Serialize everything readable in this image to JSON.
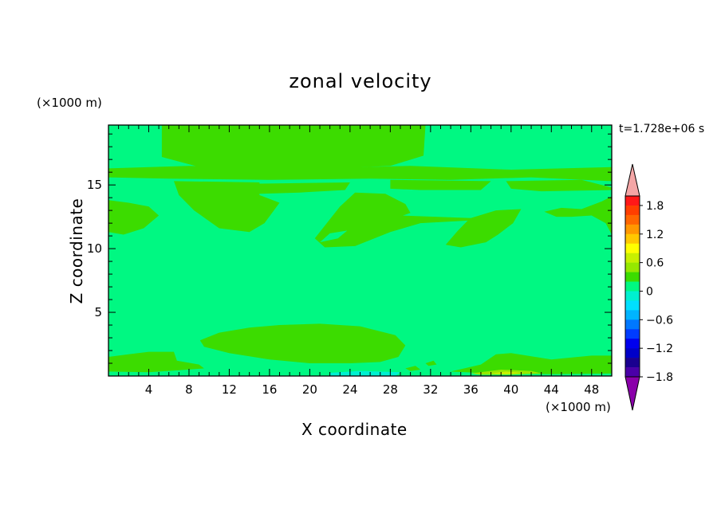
{
  "chart_data": {
    "type": "heatmap",
    "title": "zonal velocity",
    "xlabel": "X coordinate",
    "ylabel": "Z coordinate",
    "x_unit": "(×1000 m)",
    "z_unit": "(×1000 m)",
    "time_label": "t=1.728e+06 s",
    "xlim": [
      0,
      50
    ],
    "ylim": [
      0,
      19.7
    ],
    "x_ticks": [
      "4",
      "8",
      "12",
      "16",
      "20",
      "24",
      "28",
      "32",
      "36",
      "40",
      "44",
      "48"
    ],
    "y_ticks": [
      "5",
      "10",
      "15"
    ],
    "background_level_color": "#00f882",
    "colorbar": {
      "tick_labels": [
        "1.8",
        "1.2",
        "0.6",
        "0",
        "−0.6",
        "−1.2",
        "−1.8"
      ],
      "bin_colors": [
        "#ff1818",
        "#ff3e00",
        "#ff6600",
        "#ff9800",
        "#ffc800",
        "#ffff00",
        "#c8f000",
        "#96e800",
        "#3cdc00",
        "#00f882",
        "#00f0d0",
        "#00e0ff",
        "#00b4ff",
        "#0078ff",
        "#003cff",
        "#0000ee",
        "#0000c8",
        "#1a0090",
        "#4a00a8"
      ],
      "over_color": "#f4a6a6",
      "under_color": "#8a00aa"
    },
    "regions": [
      {
        "level": "0 to 0.2",
        "color": "#3cdc00",
        "polygon": [
          [
            5.3,
            19.7
          ],
          [
            31.5,
            19.7
          ],
          [
            31.3,
            17.3
          ],
          [
            28,
            16.5
          ],
          [
            20,
            16.2
          ],
          [
            10,
            16.2
          ],
          [
            5.3,
            17.2
          ]
        ]
      },
      {
        "level": "0 to 0.2",
        "color": "#3cdc00",
        "polygon": [
          [
            0,
            16.3
          ],
          [
            8,
            16.5
          ],
          [
            20,
            16.3
          ],
          [
            30,
            16.5
          ],
          [
            40,
            16.2
          ],
          [
            50,
            16.4
          ],
          [
            50,
            15.3
          ],
          [
            42,
            15.6
          ],
          [
            34,
            15.4
          ],
          [
            26,
            15.5
          ],
          [
            16,
            15.4
          ],
          [
            6,
            15.5
          ],
          [
            0,
            15.6
          ]
        ]
      },
      {
        "level": "0 to 0.2",
        "color": "#3cdc00",
        "polygon": [
          [
            0,
            13.8
          ],
          [
            2,
            13.6
          ],
          [
            4,
            13.3
          ],
          [
            5,
            12.6
          ],
          [
            3.5,
            11.6
          ],
          [
            1.5,
            11.1
          ],
          [
            0,
            11.3
          ]
        ]
      },
      {
        "level": "0 to 0.2",
        "color": "#3cdc00",
        "polygon": [
          [
            6.5,
            15.3
          ],
          [
            15,
            15.2
          ],
          [
            15,
            14.2
          ],
          [
            17,
            13.6
          ],
          [
            15.5,
            12
          ],
          [
            14,
            11.3
          ],
          [
            11,
            11.6
          ],
          [
            8.5,
            13
          ],
          [
            7,
            14.2
          ]
        ]
      },
      {
        "level": "0 to 0.2",
        "color": "#3cdc00",
        "polygon": [
          [
            14.5,
            15.1
          ],
          [
            24,
            15.2
          ],
          [
            23.5,
            14.6
          ],
          [
            19,
            14.4
          ],
          [
            15,
            14.3
          ]
        ]
      },
      {
        "level": "0 to 0.2",
        "color": "#3cdc00",
        "polygon": [
          [
            24.5,
            14.4
          ],
          [
            27.5,
            14.3
          ],
          [
            29.5,
            13.5
          ],
          [
            30,
            12.8
          ],
          [
            28.5,
            12.4
          ],
          [
            26,
            11.7
          ],
          [
            22,
            11.2
          ],
          [
            21,
            10.5
          ],
          [
            22.8,
            10.8
          ],
          [
            24,
            11.6
          ],
          [
            27,
            12.3
          ],
          [
            29,
            12.6
          ],
          [
            36,
            12.4
          ],
          [
            38.5,
            13
          ],
          [
            41,
            13.1
          ],
          [
            40.2,
            12
          ],
          [
            38.7,
            11.1
          ],
          [
            37.5,
            10.5
          ],
          [
            35,
            10.1
          ],
          [
            33.5,
            10.3
          ],
          [
            34.7,
            11.4
          ],
          [
            35.7,
            12.2
          ],
          [
            31,
            12
          ],
          [
            28,
            11.3
          ],
          [
            24.5,
            10.2
          ],
          [
            21.5,
            10.1
          ],
          [
            20.5,
            10.8
          ],
          [
            22,
            12.3
          ],
          [
            23,
            13.3
          ]
        ]
      },
      {
        "level": "0 to 0.2",
        "color": "#3cdc00",
        "polygon": [
          [
            28,
            15.4
          ],
          [
            38,
            15.3
          ],
          [
            37,
            14.6
          ],
          [
            31,
            14.6
          ],
          [
            28,
            14.7
          ]
        ]
      },
      {
        "level": "0 to 0.2",
        "color": "#3cdc00",
        "polygon": [
          [
            39.5,
            15.3
          ],
          [
            47,
            15.4
          ],
          [
            50,
            14.8
          ],
          [
            50,
            14.6
          ],
          [
            43,
            14.5
          ],
          [
            40,
            14.7
          ]
        ]
      },
      {
        "level": "0 to 0.2",
        "color": "#3cdc00",
        "polygon": [
          [
            43.3,
            12.9
          ],
          [
            45,
            13.2
          ],
          [
            47,
            13.1
          ],
          [
            49,
            13.7
          ],
          [
            50,
            14.1
          ],
          [
            50,
            11.1
          ],
          [
            49.4,
            12
          ],
          [
            48,
            12.6
          ],
          [
            46,
            12.5
          ],
          [
            44.5,
            12.5
          ]
        ]
      },
      {
        "level": "0 to 0.2",
        "color": "#3cdc00",
        "polygon": [
          [
            9.1,
            2.8
          ],
          [
            11,
            3.4
          ],
          [
            14,
            3.8
          ],
          [
            17,
            4
          ],
          [
            21,
            4.1
          ],
          [
            25,
            3.9
          ],
          [
            28.5,
            3.2
          ],
          [
            29.5,
            2.4
          ],
          [
            28.8,
            1.5
          ],
          [
            27,
            1.1
          ],
          [
            24,
            1
          ],
          [
            20,
            1
          ],
          [
            16,
            1.3
          ],
          [
            12,
            1.8
          ],
          [
            9.5,
            2.3
          ]
        ]
      },
      {
        "level": "0 to 0.2",
        "color": "#3cdc00",
        "polygon": [
          [
            0,
            1.5
          ],
          [
            2,
            1.7
          ],
          [
            4,
            1.9
          ],
          [
            6.5,
            1.9
          ],
          [
            6.8,
            1.2
          ],
          [
            9,
            0.9
          ],
          [
            9.5,
            0.6
          ],
          [
            7,
            0.45
          ],
          [
            4,
            0.3
          ],
          [
            0,
            0.35
          ]
        ]
      },
      {
        "level": "0 to 0.2",
        "color": "#3cdc00",
        "polygon": [
          [
            34,
            0.35
          ],
          [
            37,
            0.9
          ],
          [
            38.5,
            1.7
          ],
          [
            40,
            1.8
          ],
          [
            44,
            1.3
          ],
          [
            48,
            1.6
          ],
          [
            50,
            1.6
          ],
          [
            50,
            0.2
          ],
          [
            44,
            0.15
          ],
          [
            38,
            0.2
          ]
        ]
      },
      {
        "level": "-0.2 to 0",
        "color": "#00f0d0",
        "polygon": [
          [
            22,
            0
          ],
          [
            28.5,
            0
          ],
          [
            29,
            0.3
          ],
          [
            25,
            0.4
          ],
          [
            22,
            0.25
          ]
        ]
      },
      {
        "level": "0.2 to 0.4",
        "color": "#96e800",
        "polygon": [
          [
            36,
            0.2
          ],
          [
            39,
            0.5
          ],
          [
            42,
            0.4
          ],
          [
            43,
            0.2
          ],
          [
            40,
            0.1
          ],
          [
            37,
            0.1
          ]
        ]
      },
      {
        "level": "0.4 to 0.6",
        "color": "#c8f000",
        "polygon": [
          [
            38,
            0.2
          ],
          [
            39.5,
            0.35
          ],
          [
            41,
            0.25
          ],
          [
            39.5,
            0.12
          ]
        ]
      },
      {
        "level": "0 to 0.2",
        "color": "#3cdc00",
        "polygon": [
          [
            29.5,
            0.6
          ],
          [
            30.5,
            0.8
          ],
          [
            31,
            0.5
          ],
          [
            30,
            0.4
          ]
        ]
      },
      {
        "level": "0 to 0.2",
        "color": "#3cdc00",
        "polygon": [
          [
            31.5,
            1.0
          ],
          [
            32.3,
            1.2
          ],
          [
            32.6,
            0.9
          ],
          [
            31.8,
            0.8
          ]
        ]
      }
    ]
  }
}
